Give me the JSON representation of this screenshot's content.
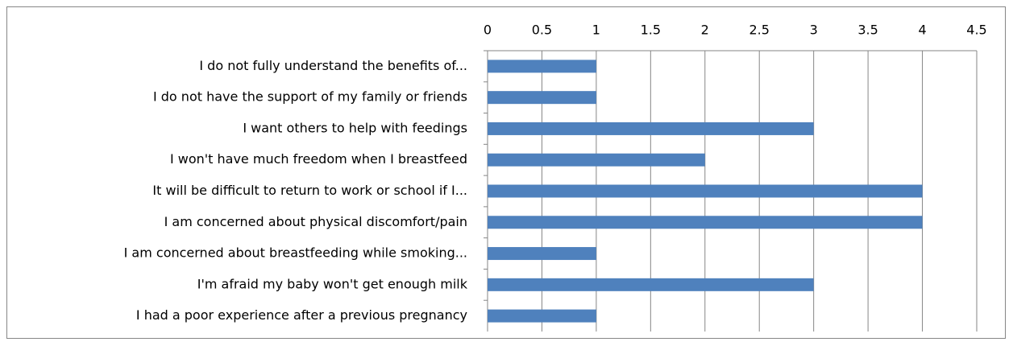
{
  "chart_data": {
    "type": "bar",
    "orientation": "horizontal",
    "categories": [
      "I do not fully understand the benefits of...",
      "I do not have the support of my family or friends",
      "I want others to help with feedings",
      "I won't have much freedom when I breastfeed",
      "It will be difficult to return to work or school if I...",
      "I am concerned about physical discomfort/pain",
      "I am concerned about breastfeeding while smoking...",
      "I'm afraid my baby won't get enough milk",
      "I had a poor experience after a previous pregnancy"
    ],
    "values": [
      1,
      1,
      3,
      2,
      4,
      4,
      1,
      3,
      1
    ],
    "color": "#4f81bd",
    "xlim": [
      0,
      4.5
    ],
    "xticks": [
      0,
      0.5,
      1,
      1.5,
      2,
      2.5,
      3,
      3.5,
      4,
      4.5
    ],
    "grid": true
  }
}
